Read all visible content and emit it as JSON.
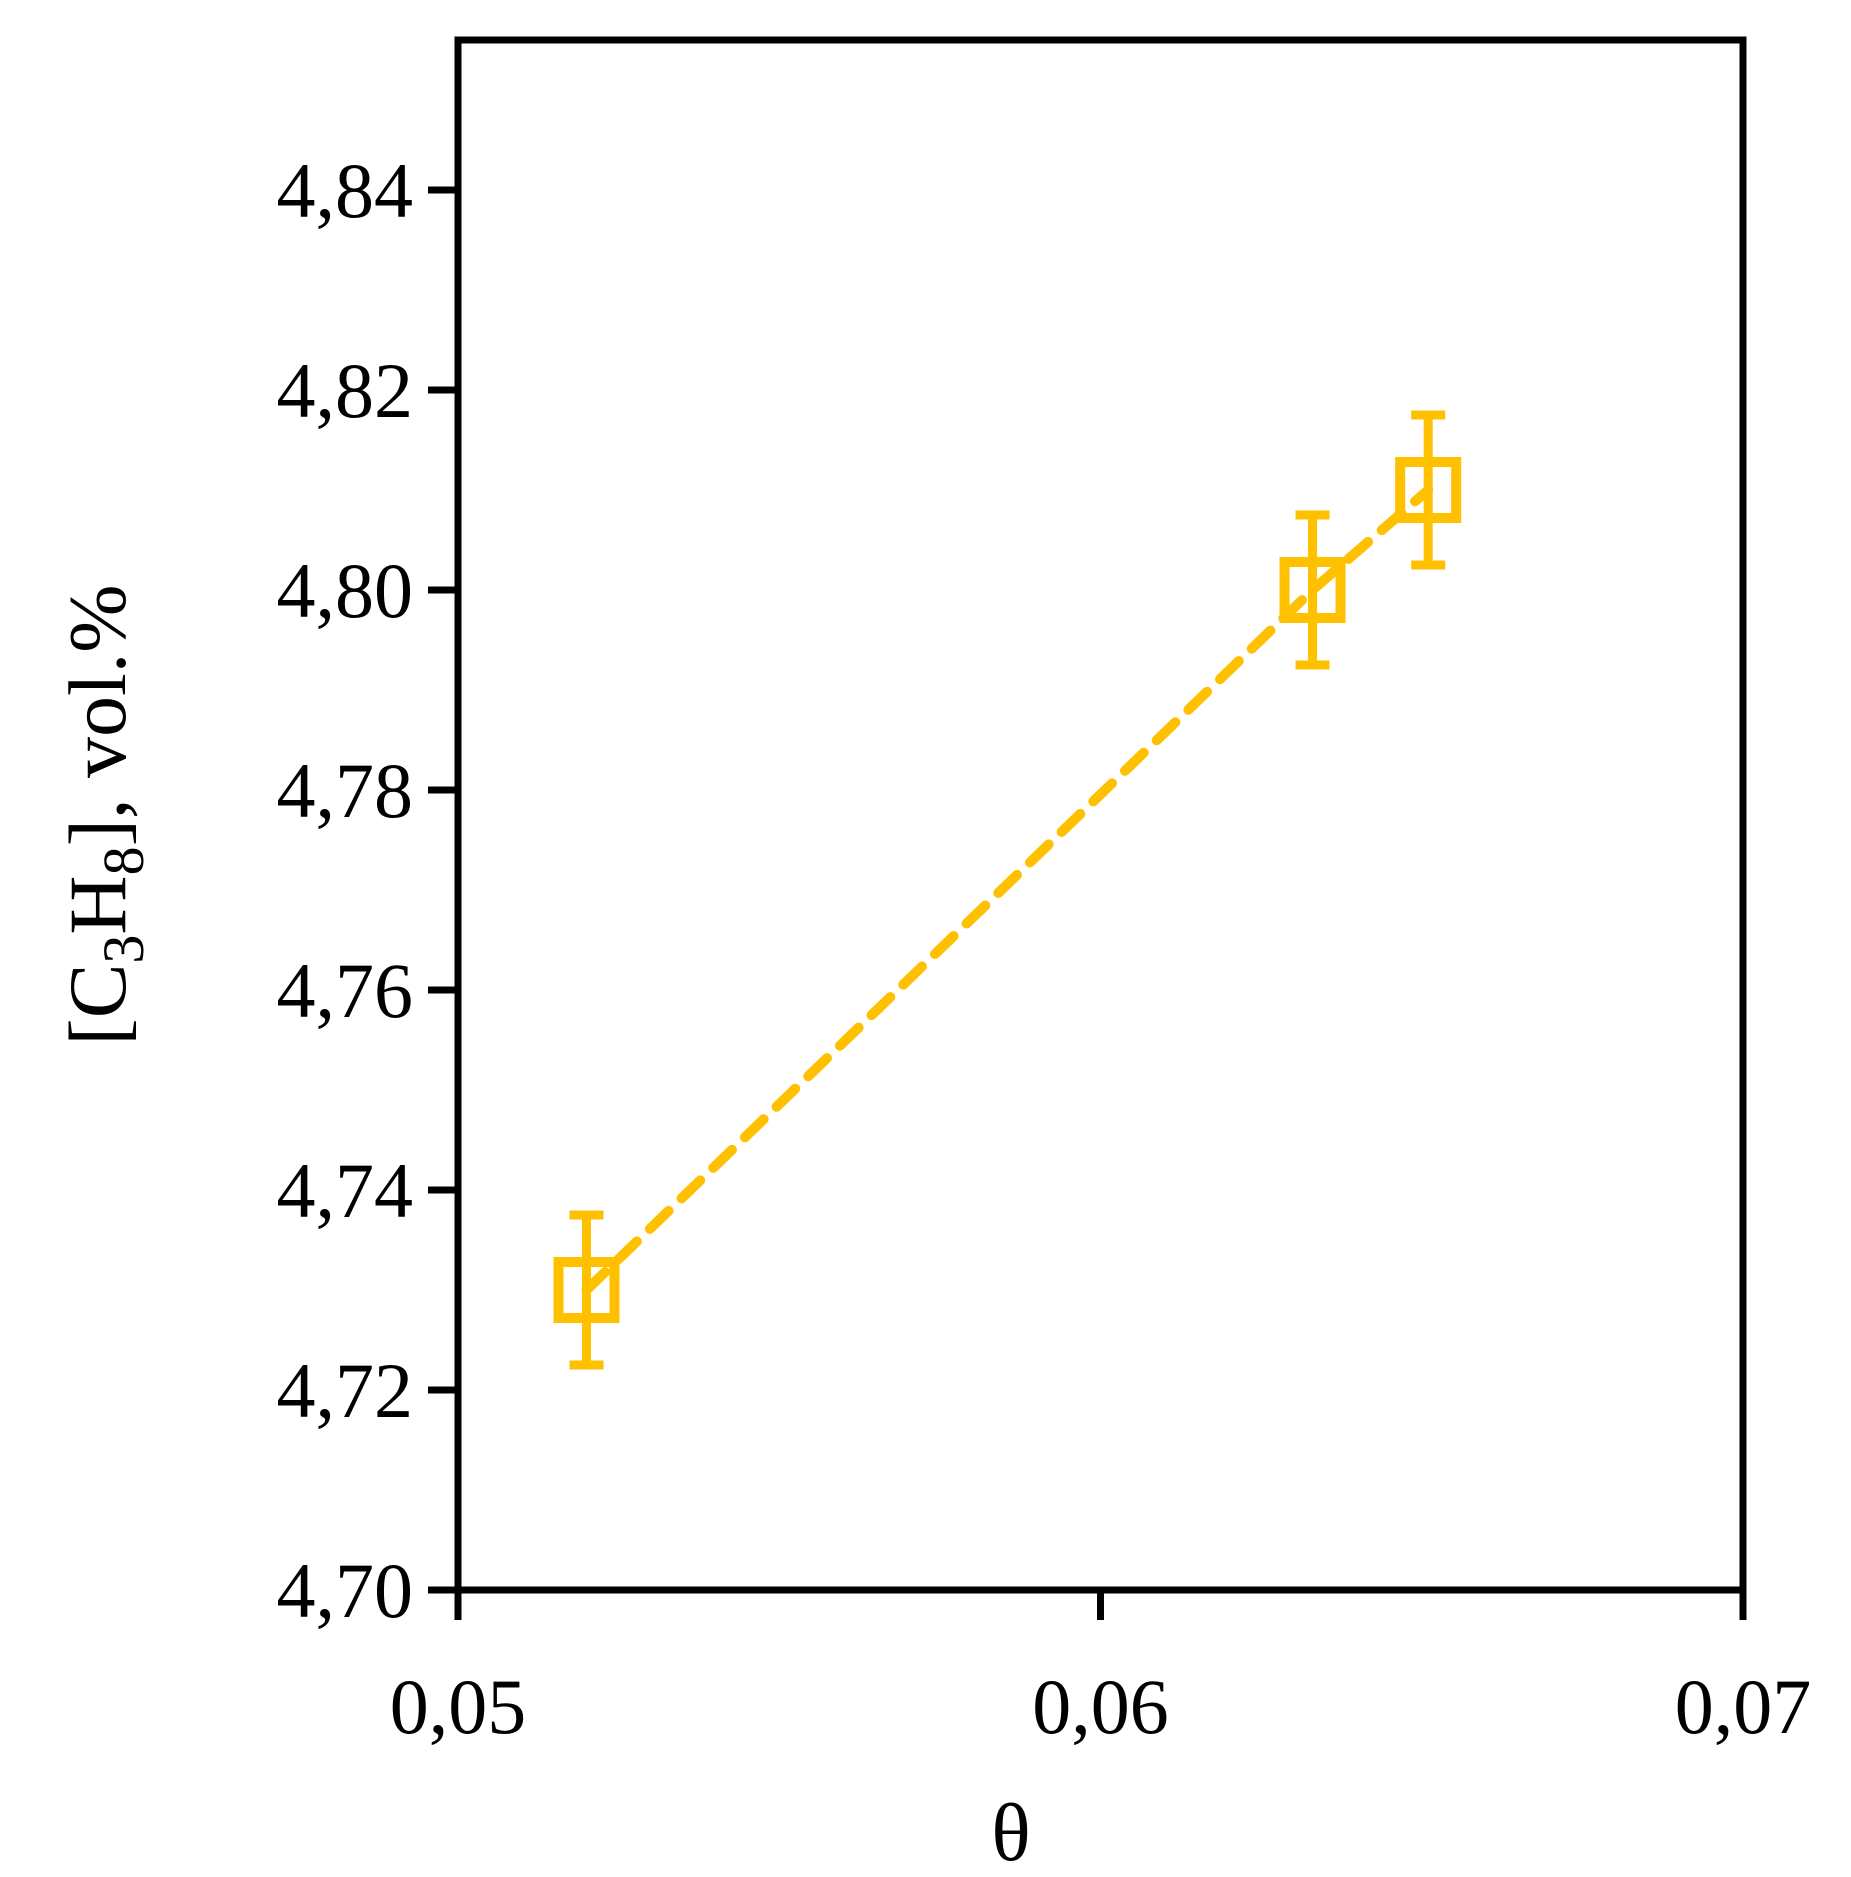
{
  "chart_data": {
    "type": "scatter",
    "title": "",
    "xlabel": "θ",
    "ylabel": {
      "prefix": "[C",
      "sub1": "3",
      "mid": "H",
      "sub2": "8",
      "suffix": "], vol.%"
    },
    "xlim": [
      0.05,
      0.07
    ],
    "ylim": [
      4.7,
      4.855
    ],
    "x_ticks": [
      0.05,
      0.06,
      0.07
    ],
    "x_tick_labels": [
      "0,05",
      "0,06",
      "0,07"
    ],
    "y_ticks": [
      4.7,
      4.72,
      4.74,
      4.76,
      4.78,
      4.8,
      4.82,
      4.84
    ],
    "y_tick_labels": [
      "4,70",
      "4,72",
      "4,74",
      "4,76",
      "4,78",
      "4,80",
      "4,82",
      "4,84"
    ],
    "grid": false,
    "legend": "none",
    "series": [
      {
        "marker": "open-square",
        "line": "dashed",
        "color": "#FFC000",
        "x": [
          0.052,
          0.0633,
          0.0651
        ],
        "y": [
          4.73,
          4.8,
          4.81
        ],
        "error_y": [
          0.0075,
          0.0075,
          0.0075
        ]
      }
    ]
  }
}
